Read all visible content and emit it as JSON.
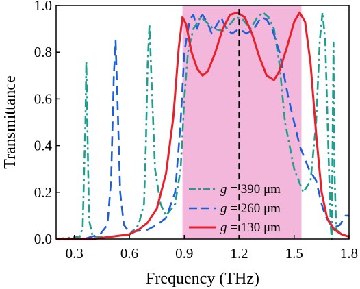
{
  "chart_data": {
    "type": "line",
    "title": "",
    "xlabel": "Frequency (THz)",
    "ylabel": "Transmittance",
    "xlim": [
      0.2,
      1.8
    ],
    "ylim": [
      0.0,
      1.0
    ],
    "x_ticks": [
      "0.3",
      "0.6",
      "0.9",
      "1.2",
      "1.5",
      "1.8"
    ],
    "y_ticks": [
      "0.0",
      "0.2",
      "0.4",
      "0.6",
      "0.8",
      "1.0"
    ],
    "shaded_band": {
      "x_start": 0.89,
      "x_end": 1.54,
      "color": "#f4b7dc"
    },
    "center_line": {
      "x": 1.2,
      "style": "dashed",
      "color": "#000000"
    },
    "legend_position": "bottom-center",
    "series": [
      {
        "name_prefix": "g",
        "name_value": " = 390 μm",
        "color": "#1e9e8e",
        "style": "dash-dot",
        "points": [
          [
            0.2,
            0.0
          ],
          [
            0.33,
            0.01
          ],
          [
            0.345,
            0.05
          ],
          [
            0.36,
            0.5
          ],
          [
            0.365,
            0.76
          ],
          [
            0.37,
            0.5
          ],
          [
            0.38,
            0.08
          ],
          [
            0.4,
            0.01
          ],
          [
            0.5,
            0.01
          ],
          [
            0.6,
            0.02
          ],
          [
            0.65,
            0.06
          ],
          [
            0.68,
            0.15
          ],
          [
            0.69,
            0.4
          ],
          [
            0.7,
            0.75
          ],
          [
            0.71,
            0.92
          ],
          [
            0.72,
            0.7
          ],
          [
            0.74,
            0.3
          ],
          [
            0.77,
            0.15
          ],
          [
            0.8,
            0.1
          ],
          [
            0.85,
            0.15
          ],
          [
            0.88,
            0.3
          ],
          [
            0.9,
            0.6
          ],
          [
            0.92,
            0.8
          ],
          [
            0.95,
            0.9
          ],
          [
            0.99,
            0.95
          ],
          [
            1.02,
            0.93
          ],
          [
            1.06,
            0.9
          ],
          [
            1.12,
            0.89
          ],
          [
            1.18,
            0.95
          ],
          [
            1.22,
            0.94
          ],
          [
            1.26,
            0.9
          ],
          [
            1.3,
            0.95
          ],
          [
            1.33,
            0.97
          ],
          [
            1.36,
            0.95
          ],
          [
            1.39,
            0.9
          ],
          [
            1.42,
            0.75
          ],
          [
            1.45,
            0.5
          ],
          [
            1.5,
            0.3
          ],
          [
            1.55,
            0.2
          ],
          [
            1.59,
            0.25
          ],
          [
            1.62,
            0.5
          ],
          [
            1.64,
            0.85
          ],
          [
            1.655,
            0.97
          ],
          [
            1.67,
            0.85
          ],
          [
            1.69,
            0.3
          ],
          [
            1.7,
            0.05
          ],
          [
            1.705,
            0.0
          ],
          [
            1.71,
            0.4
          ],
          [
            1.715,
            0.84
          ],
          [
            1.72,
            0.3
          ],
          [
            1.73,
            0.04
          ],
          [
            1.76,
            0.02
          ],
          [
            1.8,
            0.01
          ]
        ]
      },
      {
        "name_prefix": "g",
        "name_value": " = 260 μm",
        "color": "#1f5fd6",
        "style": "dashed",
        "points": [
          [
            0.2,
            0.0
          ],
          [
            0.35,
            0.0
          ],
          [
            0.44,
            0.02
          ],
          [
            0.48,
            0.06
          ],
          [
            0.5,
            0.25
          ],
          [
            0.515,
            0.7
          ],
          [
            0.525,
            0.85
          ],
          [
            0.535,
            0.6
          ],
          [
            0.55,
            0.2
          ],
          [
            0.57,
            0.06
          ],
          [
            0.6,
            0.03
          ],
          [
            0.7,
            0.04
          ],
          [
            0.75,
            0.06
          ],
          [
            0.8,
            0.09
          ],
          [
            0.85,
            0.2
          ],
          [
            0.88,
            0.5
          ],
          [
            0.9,
            0.8
          ],
          [
            0.93,
            0.94
          ],
          [
            0.95,
            0.96
          ],
          [
            0.97,
            0.9
          ],
          [
            0.99,
            0.95
          ],
          [
            1.0,
            0.96
          ],
          [
            1.03,
            0.92
          ],
          [
            1.05,
            0.88
          ],
          [
            1.08,
            0.92
          ],
          [
            1.1,
            0.95
          ],
          [
            1.13,
            0.9
          ],
          [
            1.16,
            0.88
          ],
          [
            1.2,
            0.9
          ],
          [
            1.24,
            0.88
          ],
          [
            1.28,
            0.9
          ],
          [
            1.32,
            0.95
          ],
          [
            1.35,
            0.94
          ],
          [
            1.38,
            0.9
          ],
          [
            1.42,
            0.8
          ],
          [
            1.47,
            0.6
          ],
          [
            1.53,
            0.4
          ],
          [
            1.58,
            0.3
          ],
          [
            1.62,
            0.25
          ],
          [
            1.65,
            0.15
          ],
          [
            1.67,
            0.1
          ],
          [
            1.7,
            0.06
          ],
          [
            1.72,
            0.05
          ],
          [
            1.75,
            0.06
          ],
          [
            1.78,
            0.1
          ],
          [
            1.8,
            0.1
          ]
        ]
      },
      {
        "name_prefix": "g",
        "name_value": " = 130 μm",
        "color": "#e8202a",
        "style": "solid",
        "points": [
          [
            0.2,
            0.0
          ],
          [
            0.4,
            0.0
          ],
          [
            0.5,
            0.01
          ],
          [
            0.6,
            0.02
          ],
          [
            0.65,
            0.04
          ],
          [
            0.7,
            0.07
          ],
          [
            0.75,
            0.13
          ],
          [
            0.8,
            0.28
          ],
          [
            0.84,
            0.52
          ],
          [
            0.87,
            0.82
          ],
          [
            0.89,
            0.95
          ],
          [
            0.91,
            0.92
          ],
          [
            0.94,
            0.8
          ],
          [
            0.97,
            0.73
          ],
          [
            1.0,
            0.7
          ],
          [
            1.03,
            0.72
          ],
          [
            1.07,
            0.8
          ],
          [
            1.11,
            0.9
          ],
          [
            1.15,
            0.96
          ],
          [
            1.19,
            0.97
          ],
          [
            1.23,
            0.95
          ],
          [
            1.27,
            0.88
          ],
          [
            1.31,
            0.78
          ],
          [
            1.35,
            0.7
          ],
          [
            1.39,
            0.68
          ],
          [
            1.42,
            0.72
          ],
          [
            1.46,
            0.82
          ],
          [
            1.5,
            0.93
          ],
          [
            1.53,
            0.97
          ],
          [
            1.56,
            0.93
          ],
          [
            1.59,
            0.75
          ],
          [
            1.62,
            0.45
          ],
          [
            1.65,
            0.2
          ],
          [
            1.68,
            0.09
          ],
          [
            1.72,
            0.04
          ],
          [
            1.76,
            0.02
          ],
          [
            1.8,
            0.01
          ]
        ]
      }
    ]
  }
}
